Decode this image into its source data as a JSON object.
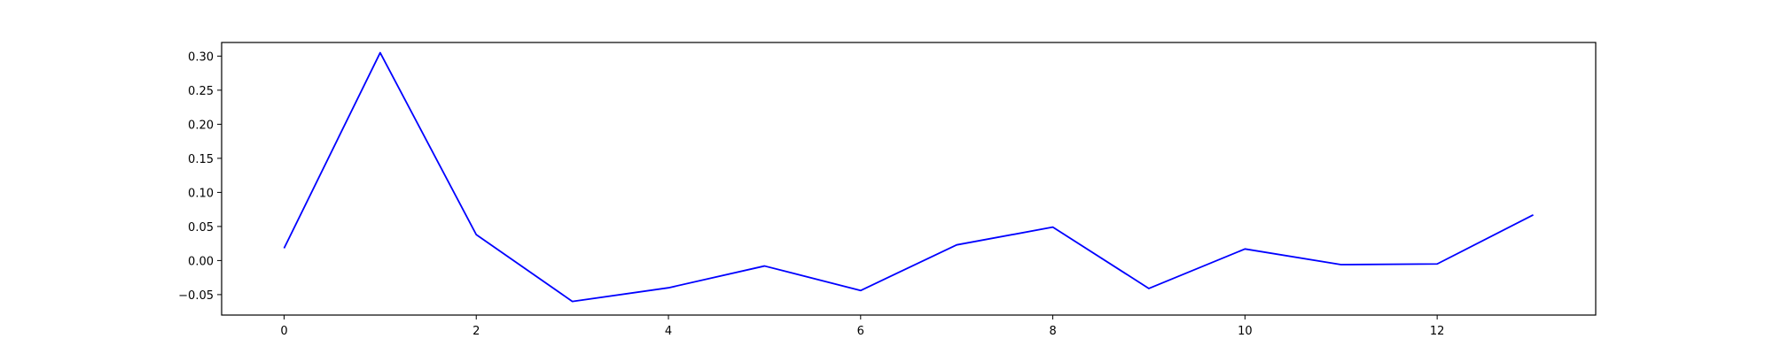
{
  "chart_data": {
    "type": "line",
    "title": "",
    "xlabel": "",
    "ylabel": "",
    "xlim": [
      -0.65,
      13.65
    ],
    "ylim": [
      -0.08,
      0.32
    ],
    "grid": false,
    "legend": "none",
    "x_ticks": [
      0,
      2,
      4,
      6,
      8,
      10,
      12
    ],
    "x_tick_labels": [
      "0",
      "2",
      "4",
      "6",
      "8",
      "10",
      "12"
    ],
    "y_ticks": [
      -0.05,
      0.0,
      0.05,
      0.1,
      0.15,
      0.2,
      0.25,
      0.3
    ],
    "y_tick_labels": [
      "−0.05",
      "0.00",
      "0.05",
      "0.10",
      "0.15",
      "0.20",
      "0.25",
      "0.30"
    ],
    "series": [
      {
        "color": "#0000ff",
        "x": [
          0,
          1,
          2,
          3,
          4,
          5,
          6,
          7,
          8,
          9,
          10,
          11,
          12,
          13
        ],
        "values": [
          0.018,
          0.305,
          0.038,
          -0.06,
          -0.04,
          -0.008,
          -0.044,
          0.023,
          0.049,
          -0.041,
          0.017,
          -0.006,
          -0.005,
          0.067
        ]
      }
    ]
  }
}
